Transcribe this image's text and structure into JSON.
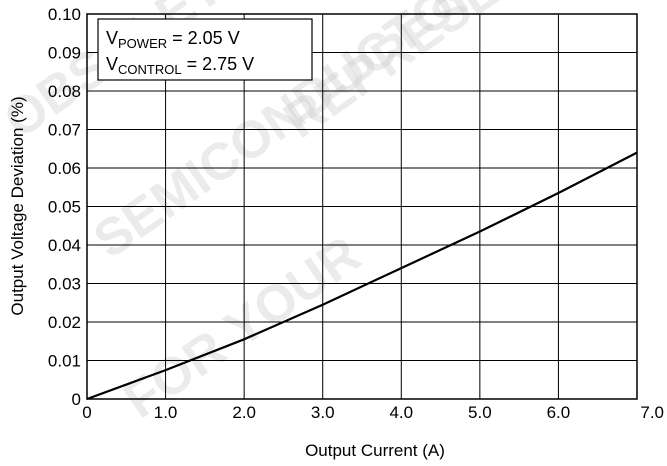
{
  "chart_data": {
    "type": "line",
    "title": "",
    "xlabel": "Output Current (A)",
    "ylabel": "Output Voltage Deviation (%)",
    "xlim": [
      0,
      7.0
    ],
    "ylim": [
      0,
      0.1
    ],
    "x_ticks": [
      "0",
      "1.0",
      "2.0",
      "3.0",
      "4.0",
      "5.0",
      "6.0",
      "7.0"
    ],
    "y_ticks": [
      "0",
      "0.01",
      "0.02",
      "0.03",
      "0.04",
      "0.05",
      "0.06",
      "0.07",
      "0.08",
      "0.09",
      "0.10"
    ],
    "grid": true,
    "legend_position": "top-left",
    "annotation": {
      "line1": {
        "prefix": "V",
        "sub": "POWER",
        "suffix": " = 2.05 V"
      },
      "line2": {
        "prefix": "V",
        "sub": "CONTROL",
        "suffix": " = 2.75 V"
      }
    },
    "series": [
      {
        "x": [
          0,
          1.0,
          2.0,
          3.0,
          4.0,
          5.0,
          6.0,
          7.0
        ],
        "y": [
          0,
          0.0075,
          0.0155,
          0.0245,
          0.034,
          0.0435,
          0.0535,
          0.064
        ]
      }
    ],
    "watermark": "OBSOLETE ON SEMICONDUCTOR INFORMATION FOR YOUR REPRESENTATIVE",
    "colors": {
      "line": "#000000",
      "grid": "#000000",
      "watermark": "#c8c8c8"
    }
  }
}
